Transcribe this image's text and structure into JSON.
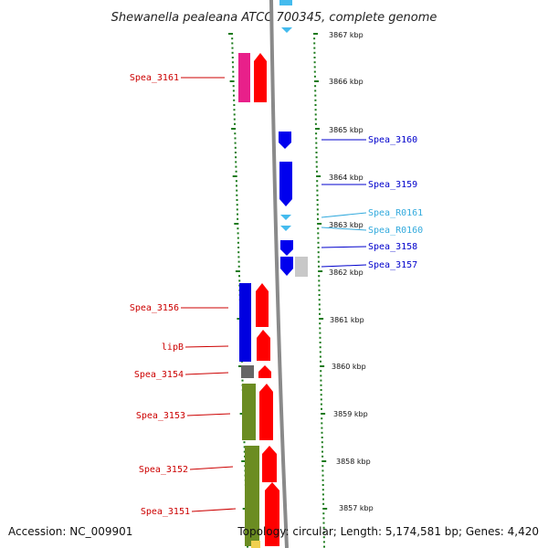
{
  "title": "Shewanella pealeana ATCC 700345, complete genome",
  "footer": {
    "accession": "Accession: NC_009901",
    "summary": "Topology: circular; Length: 5,174,581 bp; Genes: 4,420"
  },
  "colors": {
    "red_label": "#cc0000",
    "blue_label": "#0000cc",
    "cyan_label": "#33aadd",
    "tick": "#1a7a1a",
    "backbone": "#888888"
  },
  "scale": {
    "kbp_labels": [
      {
        "text": "3867 kbp"
      },
      {
        "text": "3866 kbp"
      },
      {
        "text": "3865 kbp"
      },
      {
        "text": "3864 kbp"
      },
      {
        "text": "3863 kbp"
      },
      {
        "text": "3862 kbp"
      },
      {
        "text": "3861 kbp"
      },
      {
        "text": "3860 kbp"
      },
      {
        "text": "3859 kbp"
      },
      {
        "text": "3858 kbp"
      },
      {
        "text": "3857 kbp"
      }
    ]
  },
  "left_labels": [
    {
      "text": "Spea_3161"
    },
    {
      "text": "Spea_3156"
    },
    {
      "text": "lipB"
    },
    {
      "text": "Spea_3154"
    },
    {
      "text": "Spea_3153"
    },
    {
      "text": "Spea_3152"
    },
    {
      "text": "Spea_3151"
    }
  ],
  "right_labels": [
    {
      "text": "Spea_3160",
      "kind": "blue"
    },
    {
      "text": "Spea_3159",
      "kind": "blue"
    },
    {
      "text": "Spea_R0161",
      "kind": "cyan"
    },
    {
      "text": "Spea_R0160",
      "kind": "cyan"
    },
    {
      "text": "Spea_3158",
      "kind": "blue"
    },
    {
      "text": "Spea_3157",
      "kind": "blue"
    }
  ]
}
